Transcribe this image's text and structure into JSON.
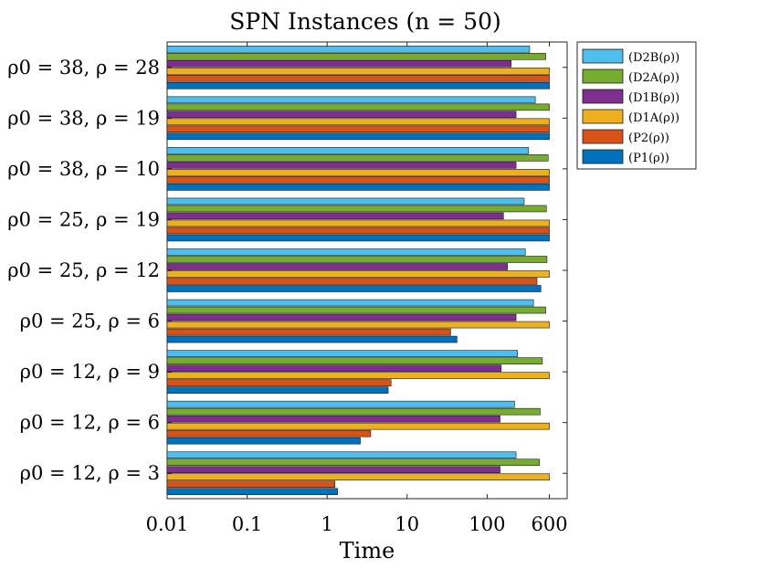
{
  "chart_data": {
    "type": "bar",
    "orientation": "horizontal",
    "title": "SPN Instances (n = 50)",
    "xlabel": "Time",
    "ylabel": "",
    "xscale": "log",
    "xlim": [
      0.01,
      1000
    ],
    "xticks": [
      0.01,
      0.1,
      1,
      10,
      100,
      600
    ],
    "xtick_labels": [
      "0.01",
      "0.1",
      "1",
      "10",
      "100",
      "600"
    ],
    "legend_position": "outside-top-right",
    "categories": [
      "ρ0 = 38, ρ = 28",
      "ρ0 = 38, ρ = 19",
      "ρ0 = 38, ρ = 10",
      "ρ0 = 25, ρ = 19",
      "ρ0 = 25, ρ = 12",
      "ρ0 = 25, ρ = 6",
      "ρ0 = 12, ρ = 9",
      "ρ0 = 12, ρ = 6",
      "ρ0 = 12, ρ = 3"
    ],
    "series": [
      {
        "name": "(D2B(ρ))",
        "color": "#4DBEEE",
        "values": [
          340,
          400,
          330,
          290,
          300,
          380,
          240,
          220,
          230
        ]
      },
      {
        "name": "(D2A(ρ))",
        "color": "#77AC30",
        "values": [
          540,
          600,
          580,
          550,
          560,
          540,
          490,
          460,
          450
        ]
      },
      {
        "name": "(D1B(ρ))",
        "color": "#7E2F8E",
        "values": [
          200,
          230,
          230,
          160,
          180,
          230,
          150,
          145,
          145
        ]
      },
      {
        "name": "(D1A(ρ))",
        "color": "#EDB120",
        "values": [
          600,
          600,
          600,
          600,
          600,
          600,
          600,
          600,
          600
        ]
      },
      {
        "name": "(P2(ρ))",
        "color": "#D95319",
        "values": [
          600,
          600,
          600,
          600,
          420,
          35,
          6.3,
          3.5,
          1.25
        ]
      },
      {
        "name": "(P1(ρ))",
        "color": "#0072BD",
        "values": [
          600,
          600,
          600,
          600,
          470,
          42,
          5.8,
          2.6,
          1.35
        ]
      }
    ]
  }
}
